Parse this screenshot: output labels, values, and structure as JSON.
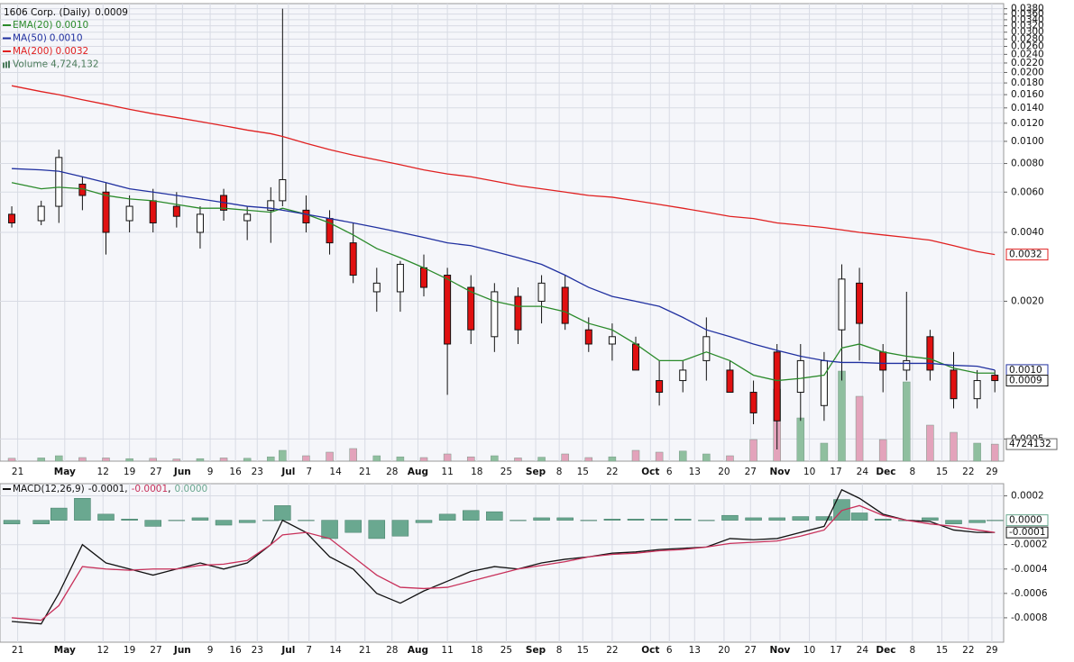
{
  "chart_data": [
    {
      "type": "candlestick",
      "title": "1606 Corp. (Daily)",
      "last": {
        "value": 0.0009,
        "label": "0.0009"
      },
      "log_scale": true,
      "grid": true,
      "xlim": [
        -1,
        169.5
      ],
      "ylim": [
        0.0004,
        0.04
      ],
      "yticks": [
        {
          "value": 0.0005,
          "label": "0.0005"
        },
        {
          "value": 0.002,
          "label": "0.0020"
        },
        {
          "value": 0.004,
          "label": "0.0040"
        },
        {
          "value": 0.006,
          "label": "0.0060"
        },
        {
          "value": 0.008,
          "label": "0.0080"
        },
        {
          "value": 0.01,
          "label": "0.0100"
        },
        {
          "value": 0.012,
          "label": "0.0120"
        },
        {
          "value": 0.014,
          "label": "0.0140"
        },
        {
          "value": 0.016,
          "label": "0.0160"
        },
        {
          "value": 0.018,
          "label": "0.0180"
        },
        {
          "value": 0.02,
          "label": "0.0200"
        },
        {
          "value": 0.022,
          "label": "0.0220"
        },
        {
          "value": 0.024,
          "label": "0.0240"
        },
        {
          "value": 0.026,
          "label": "0.0260"
        },
        {
          "value": 0.028,
          "label": "0.0280"
        },
        {
          "value": 0.03,
          "label": "0.0300"
        },
        {
          "value": 0.032,
          "label": "0.0320"
        },
        {
          "value": 0.034,
          "label": "0.0340"
        },
        {
          "value": 0.036,
          "label": "0.0360"
        },
        {
          "value": 0.038,
          "label": "0.0380"
        }
      ],
      "xticks": [
        {
          "value": 2,
          "label": "21"
        },
        {
          "value": 10,
          "label": "May"
        },
        {
          "value": 16.5,
          "label": "12"
        },
        {
          "value": 21,
          "label": "19"
        },
        {
          "value": 25.5,
          "label": "27"
        },
        {
          "value": 30,
          "label": "Jun"
        },
        {
          "value": 34.7,
          "label": "9"
        },
        {
          "value": 39,
          "label": "16"
        },
        {
          "value": 42.7,
          "label": "23"
        },
        {
          "value": 48,
          "label": "Jul"
        },
        {
          "value": 51.5,
          "label": "7"
        },
        {
          "value": 56,
          "label": "14"
        },
        {
          "value": 61,
          "label": "21"
        },
        {
          "value": 65.6,
          "label": "28"
        },
        {
          "value": 70,
          "label": "Aug"
        },
        {
          "value": 75,
          "label": "11"
        },
        {
          "value": 80,
          "label": "18"
        },
        {
          "value": 85,
          "label": "25"
        },
        {
          "value": 90,
          "label": "Sep"
        },
        {
          "value": 94,
          "label": "8"
        },
        {
          "value": 98,
          "label": "15"
        },
        {
          "value": 103,
          "label": "22"
        },
        {
          "value": 109.5,
          "label": "Oct"
        },
        {
          "value": 112.7,
          "label": "6"
        },
        {
          "value": 117,
          "label": "13"
        },
        {
          "value": 122,
          "label": "20"
        },
        {
          "value": 126.5,
          "label": "27"
        },
        {
          "value": 131.5,
          "label": "Nov"
        },
        {
          "value": 136.5,
          "label": "10"
        },
        {
          "value": 141,
          "label": "17"
        },
        {
          "value": 145.5,
          "label": "24"
        },
        {
          "value": 149.5,
          "label": "Dec"
        },
        {
          "value": 154,
          "label": "8"
        },
        {
          "value": 159,
          "label": "15"
        },
        {
          "value": 163.5,
          "label": "22"
        },
        {
          "value": 167.5,
          "label": "29"
        }
      ],
      "x": [
        1,
        6,
        9,
        13,
        17,
        21,
        25,
        29,
        33,
        37,
        41,
        45,
        47,
        51,
        55,
        59,
        63,
        67,
        71,
        75,
        79,
        83,
        87,
        91,
        95,
        99,
        103,
        107,
        111,
        115,
        119,
        123,
        127,
        131,
        135,
        139,
        142,
        145,
        149,
        153,
        157,
        161,
        165,
        168
      ],
      "open": [
        0.0048,
        0.0045,
        0.0052,
        0.0065,
        0.006,
        0.0045,
        0.0055,
        0.0052,
        0.004,
        0.0058,
        0.0045,
        0.005,
        0.0055,
        0.005,
        0.0046,
        0.0036,
        0.0022,
        0.0022,
        0.0028,
        0.0026,
        0.0023,
        0.0014,
        0.0021,
        0.002,
        0.0023,
        0.0015,
        0.0013,
        0.0013,
        0.0009,
        0.0009,
        0.0011,
        0.001,
        0.0008,
        0.0012,
        0.0008,
        0.0007,
        0.0015,
        0.0024,
        0.0012,
        0.001,
        0.0014,
        0.001,
        0.00075,
        0.00095
      ],
      "high": [
        0.0052,
        0.0055,
        0.0092,
        0.007,
        0.0066,
        0.0058,
        0.0062,
        0.006,
        0.0052,
        0.0062,
        0.0052,
        0.0063,
        0.038,
        0.0058,
        0.005,
        0.0044,
        0.0028,
        0.003,
        0.0032,
        0.0028,
        0.0026,
        0.0024,
        0.0023,
        0.0026,
        0.0026,
        0.0017,
        0.0016,
        0.0014,
        0.0011,
        0.0011,
        0.0017,
        0.0011,
        0.0009,
        0.0013,
        0.0013,
        0.0012,
        0.0029,
        0.0028,
        0.0013,
        0.0022,
        0.0015,
        0.0012,
        0.001,
        0.001
      ],
      "low": [
        0.0042,
        0.0043,
        0.0044,
        0.005,
        0.0032,
        0.004,
        0.004,
        0.0042,
        0.0034,
        0.0045,
        0.0037,
        0.0036,
        0.0052,
        0.004,
        0.0032,
        0.0024,
        0.0018,
        0.0018,
        0.0021,
        0.00078,
        0.0013,
        0.0012,
        0.0013,
        0.0016,
        0.0015,
        0.0012,
        0.0011,
        0.001,
        0.0007,
        0.0008,
        0.0009,
        0.0008,
        0.00058,
        0.00045,
        0.0006,
        0.0006,
        0.0009,
        0.0011,
        0.0008,
        0.0009,
        0.0009,
        0.00068,
        0.00068,
        0.0008
      ],
      "close": [
        0.0044,
        0.0052,
        0.0085,
        0.0058,
        0.004,
        0.0052,
        0.0044,
        0.0047,
        0.0048,
        0.005,
        0.0048,
        0.0055,
        0.0068,
        0.0044,
        0.0036,
        0.0026,
        0.0024,
        0.0029,
        0.0023,
        0.0013,
        0.0015,
        0.0022,
        0.0015,
        0.0024,
        0.0016,
        0.0013,
        0.0014,
        0.001,
        0.0008,
        0.001,
        0.0014,
        0.0008,
        0.00065,
        0.0006,
        0.0011,
        0.0011,
        0.0025,
        0.0016,
        0.001,
        0.0011,
        0.001,
        0.00075,
        0.0009,
        0.0009
      ],
      "up_color": "#ffffff",
      "down_color": "#e01010",
      "overlays": [
        {
          "name": "EMA(20)",
          "color": "#2a8a2a",
          "last": {
            "value": 0.00097,
            "label": "0.0010"
          },
          "values": [
            0.0066,
            0.0062,
            0.0063,
            0.0062,
            0.0058,
            0.0056,
            0.0055,
            0.0053,
            0.0051,
            0.0051,
            0.005,
            0.0049,
            0.0051,
            0.0048,
            0.0044,
            0.0039,
            0.0034,
            0.0031,
            0.0028,
            0.0025,
            0.0022,
            0.002,
            0.0019,
            0.0019,
            0.0018,
            0.0016,
            0.0015,
            0.0013,
            0.0011,
            0.0011,
            0.0012,
            0.0011,
            0.00095,
            0.0009,
            0.00092,
            0.00095,
            0.00125,
            0.0013,
            0.0012,
            0.00115,
            0.00112,
            0.00102,
            0.00097,
            0.00097
          ]
        },
        {
          "name": "MA(50)",
          "color": "#2030a0",
          "last": {
            "value": 0.001,
            "label": "0.0010"
          },
          "values": [
            0.0076,
            0.0075,
            0.0074,
            0.007,
            0.0066,
            0.0062,
            0.006,
            0.0058,
            0.0056,
            0.0054,
            0.0052,
            0.0051,
            0.005,
            0.0048,
            0.0046,
            0.0044,
            0.0042,
            0.004,
            0.0038,
            0.0036,
            0.0035,
            0.0033,
            0.0031,
            0.0029,
            0.0026,
            0.0023,
            0.0021,
            0.002,
            0.0019,
            0.0017,
            0.0015,
            0.0014,
            0.0013,
            0.00122,
            0.00115,
            0.0011,
            0.00108,
            0.00108,
            0.00107,
            0.00107,
            0.00107,
            0.00105,
            0.00104,
            0.001
          ]
        },
        {
          "name": "MA(200)",
          "color": "#e02020",
          "last": {
            "value": 0.0032,
            "label": "0.0032"
          },
          "values": [
            0.0175,
            0.0165,
            0.016,
            0.0152,
            0.0145,
            0.0138,
            0.0132,
            0.0127,
            0.0122,
            0.0117,
            0.0112,
            0.0108,
            0.0105,
            0.0098,
            0.0092,
            0.0087,
            0.0083,
            0.0079,
            0.0075,
            0.0072,
            0.007,
            0.0067,
            0.0064,
            0.0062,
            0.006,
            0.0058,
            0.0057,
            0.0055,
            0.0053,
            0.0051,
            0.0049,
            0.0047,
            0.0046,
            0.0044,
            0.0043,
            0.0042,
            0.0041,
            0.004,
            0.0039,
            0.0038,
            0.0037,
            0.0035,
            0.0033,
            0.0032
          ]
        }
      ],
      "volume": {
        "name": "Volume",
        "last": {
          "value": 4724132,
          "label": "4,724,132"
        },
        "vlim": [
          0,
          30000000
        ],
        "up_color": "#8fbf9f",
        "down_color": "#e3a3bb",
        "values": [
          800000,
          900000,
          1500000,
          1000000,
          900000,
          700000,
          800000,
          600000,
          700000,
          900000,
          800000,
          1200000,
          3000000,
          1500000,
          2500000,
          3500000,
          1500000,
          1200000,
          1000000,
          2000000,
          1200000,
          1500000,
          900000,
          1100000,
          2000000,
          1000000,
          1200000,
          3000000,
          2500000,
          2800000,
          2000000,
          1500000,
          6000000,
          20000000,
          12000000,
          5000000,
          25000000,
          18000000,
          6000000,
          22000000,
          10000000,
          8000000,
          5000000,
          4724132
        ]
      }
    },
    {
      "type": "macd",
      "title": "MACD(12,26,9)",
      "legend_separator": ",",
      "grid": true,
      "xlim": [
        -1,
        169.5
      ],
      "ylim": [
        -0.001,
        0.0003
      ],
      "yticks": [
        {
          "value": 0.0002,
          "label": "0.0002"
        },
        {
          "value": -0.0002,
          "label": "-0.0002"
        },
        {
          "value": -0.0004,
          "label": "-0.0004"
        },
        {
          "value": -0.0006,
          "label": "-0.0006"
        },
        {
          "value": -0.0008,
          "label": "-0.0008"
        }
      ],
      "xticks": [
        {
          "value": 2,
          "label": "21"
        },
        {
          "value": 10,
          "label": "May"
        },
        {
          "value": 16.5,
          "label": "12"
        },
        {
          "value": 21,
          "label": "19"
        },
        {
          "value": 25.5,
          "label": "27"
        },
        {
          "value": 30,
          "label": "Jun"
        },
        {
          "value": 34.7,
          "label": "9"
        },
        {
          "value": 39,
          "label": "16"
        },
        {
          "value": 42.7,
          "label": "23"
        },
        {
          "value": 48,
          "label": "Jul"
        },
        {
          "value": 51.5,
          "label": "7"
        },
        {
          "value": 56,
          "label": "14"
        },
        {
          "value": 61,
          "label": "21"
        },
        {
          "value": 65.6,
          "label": "28"
        },
        {
          "value": 70,
          "label": "Aug"
        },
        {
          "value": 75,
          "label": "11"
        },
        {
          "value": 80,
          "label": "18"
        },
        {
          "value": 85,
          "label": "25"
        },
        {
          "value": 90,
          "label": "Sep"
        },
        {
          "value": 94,
          "label": "8"
        },
        {
          "value": 98,
          "label": "15"
        },
        {
          "value": 103,
          "label": "22"
        },
        {
          "value": 109.5,
          "label": "Oct"
        },
        {
          "value": 112.7,
          "label": "6"
        },
        {
          "value": 117,
          "label": "13"
        },
        {
          "value": 122,
          "label": "20"
        },
        {
          "value": 126.5,
          "label": "27"
        },
        {
          "value": 131.5,
          "label": "Nov"
        },
        {
          "value": 136.5,
          "label": "10"
        },
        {
          "value": 141,
          "label": "17"
        },
        {
          "value": 145.5,
          "label": "24"
        },
        {
          "value": 149.5,
          "label": "Dec"
        },
        {
          "value": 154,
          "label": "8"
        },
        {
          "value": 159,
          "label": "15"
        },
        {
          "value": 163.5,
          "label": "22"
        },
        {
          "value": 167.5,
          "label": "29"
        }
      ],
      "x": [
        1,
        6,
        9,
        13,
        17,
        21,
        25,
        29,
        33,
        37,
        41,
        45,
        47,
        51,
        55,
        59,
        63,
        67,
        71,
        75,
        79,
        83,
        87,
        91,
        95,
        99,
        103,
        107,
        111,
        115,
        119,
        123,
        127,
        131,
        135,
        139,
        142,
        145,
        149,
        153,
        157,
        161,
        165,
        168
      ],
      "series": [
        {
          "style": "line",
          "color": "#111111",
          "last": {
            "value": -0.0001,
            "label": "-0.0001"
          },
          "values": [
            -0.00083,
            -0.00085,
            -0.0006,
            -0.0002,
            -0.00035,
            -0.0004,
            -0.00045,
            -0.0004,
            -0.00035,
            -0.0004,
            -0.00035,
            -0.0002,
            0,
            -0.0001,
            -0.0003,
            -0.0004,
            -0.0006,
            -0.00068,
            -0.00058,
            -0.0005,
            -0.00042,
            -0.00038,
            -0.0004,
            -0.00035,
            -0.00032,
            -0.0003,
            -0.00027,
            -0.00026,
            -0.00024,
            -0.00023,
            -0.00022,
            -0.00015,
            -0.00016,
            -0.00015,
            -0.0001,
            -5e-05,
            0.00025,
            0.00018,
            5e-05,
            0,
            -1e-05,
            -8e-05,
            -0.0001,
            -0.0001
          ]
        },
        {
          "style": "line",
          "color": "#c8305a",
          "last": {
            "value": -0.0001,
            "label": "-0.0001"
          },
          "values": [
            -0.0008,
            -0.00082,
            -0.0007,
            -0.00038,
            -0.0004,
            -0.00041,
            -0.0004,
            -0.0004,
            -0.00037,
            -0.00036,
            -0.00033,
            -0.0002,
            -0.00012,
            -0.0001,
            -0.00015,
            -0.0003,
            -0.00045,
            -0.00055,
            -0.00056,
            -0.00055,
            -0.0005,
            -0.00045,
            -0.0004,
            -0.00037,
            -0.00034,
            -0.0003,
            -0.00028,
            -0.00027,
            -0.00025,
            -0.00024,
            -0.00022,
            -0.00019,
            -0.00018,
            -0.00017,
            -0.00013,
            -8e-05,
            8e-05,
            0.00012,
            4e-05,
            0,
            -3e-05,
            -5e-05,
            -8e-05,
            -0.0001
          ]
        },
        {
          "style": "bars",
          "color": "#6aa890",
          "last": {
            "value": 0,
            "label": "0.0000"
          },
          "values": [
            -3e-05,
            -3e-05,
            0.0001,
            0.00018,
            5e-05,
            1e-05,
            -5e-05,
            0,
            2e-05,
            -4e-05,
            -2e-05,
            0,
            0.00012,
            0,
            -0.00015,
            -0.0001,
            -0.00015,
            -0.00013,
            -2e-05,
            5e-05,
            8e-05,
            7e-05,
            0,
            2e-05,
            2e-05,
            0,
            1e-05,
            1e-05,
            1e-05,
            1e-05,
            0,
            4e-05,
            2e-05,
            2e-05,
            3e-05,
            3e-05,
            0.00017,
            6e-05,
            1e-05,
            0,
            2e-05,
            -3e-05,
            -2e-05,
            0
          ]
        }
      ]
    }
  ]
}
